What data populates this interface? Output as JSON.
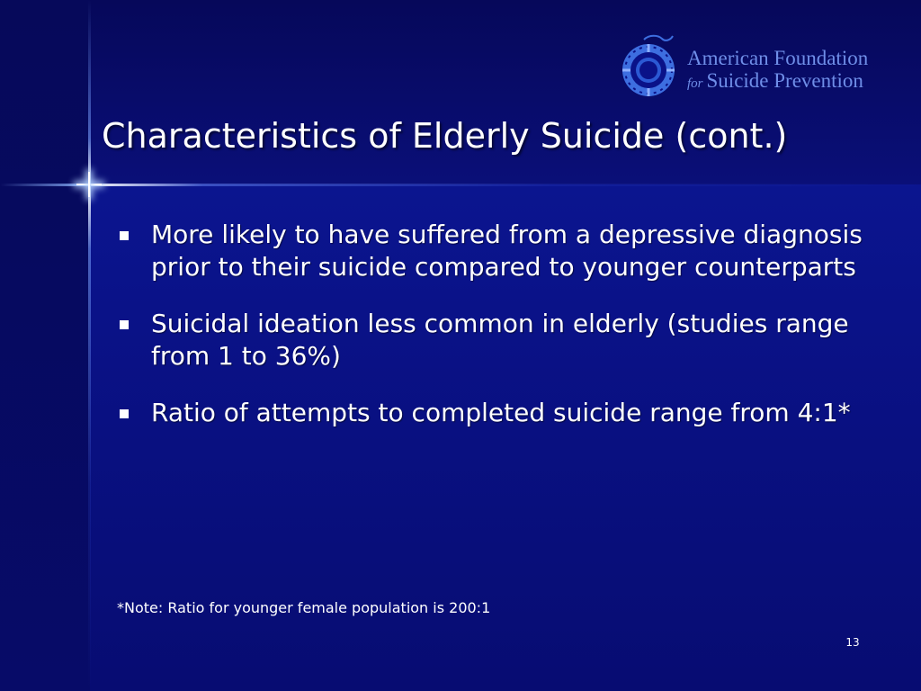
{
  "logo": {
    "line1": "American Foundation",
    "for": "for",
    "line2": "Suicide Prevention",
    "icon": "life-ring-icon"
  },
  "title": "Characteristics of Elderly Suicide (cont.)",
  "bullets": [
    "More likely to have suffered from a depressive diagnosis prior to their suicide compared to younger counterparts",
    "Suicidal ideation less common in elderly (studies range from 1 to 36%)",
    "Ratio of attempts to completed suicide range from 4:1*"
  ],
  "note": "*Note: Ratio for younger female population is 200:1",
  "page_number": "13",
  "colors": {
    "background": "#0a1288",
    "logo_text": "#6f8ee8",
    "text": "#ffffff"
  }
}
